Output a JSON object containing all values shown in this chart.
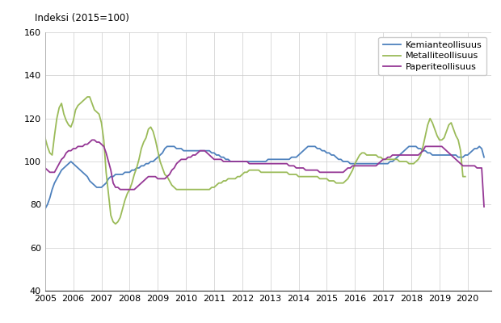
{
  "title": "Indeksi (2015=100)",
  "xlim_start": 2005.0,
  "xlim_end": 2020.83,
  "ylim": [
    40,
    160
  ],
  "yticks": [
    40,
    60,
    80,
    100,
    120,
    140,
    160
  ],
  "xtick_years": [
    2005,
    2006,
    2007,
    2008,
    2009,
    2010,
    2011,
    2012,
    2013,
    2014,
    2015,
    2016,
    2017,
    2018,
    2019,
    2020
  ],
  "line_colors": {
    "kemia": "#4e81bd",
    "metalli": "#9bbb59",
    "paperi": "#953795"
  },
  "legend_labels": [
    "Kemianteollisuus",
    "Metalliteollisuus",
    "Paperiteollisuus"
  ],
  "kemia": [
    78,
    80,
    83,
    87,
    90,
    92,
    94,
    96,
    97,
    98,
    99,
    100,
    99,
    98,
    97,
    96,
    95,
    94,
    93,
    91,
    90,
    89,
    88,
    88,
    88,
    89,
    90,
    92,
    93,
    93,
    94,
    94,
    94,
    94,
    95,
    95,
    95,
    96,
    96,
    97,
    97,
    98,
    98,
    99,
    99,
    100,
    100,
    101,
    102,
    103,
    104,
    106,
    107,
    107,
    107,
    107,
    106,
    106,
    106,
    105,
    105,
    105,
    105,
    105,
    105,
    105,
    105,
    105,
    105,
    105,
    105,
    104,
    104,
    103,
    103,
    102,
    102,
    101,
    101,
    100,
    100,
    100,
    100,
    100,
    100,
    100,
    100,
    100,
    100,
    100,
    100,
    100,
    100,
    100,
    100,
    101,
    101,
    101,
    101,
    101,
    101,
    101,
    101,
    101,
    101,
    102,
    102,
    102,
    103,
    104,
    105,
    106,
    107,
    107,
    107,
    107,
    106,
    106,
    105,
    105,
    104,
    104,
    103,
    103,
    102,
    101,
    101,
    100,
    100,
    100,
    99,
    99,
    99,
    99,
    99,
    99,
    99,
    99,
    99,
    99,
    99,
    99,
    99,
    99,
    99,
    99,
    99,
    100,
    100,
    101,
    102,
    103,
    104,
    105,
    106,
    107,
    107,
    107,
    107,
    106,
    106,
    105,
    105,
    104,
    104,
    103,
    103,
    103,
    103,
    103,
    103,
    103,
    103,
    103,
    103,
    103,
    102,
    102,
    102,
    103,
    103,
    104,
    105,
    106,
    106,
    107,
    106,
    102
  ],
  "metalli": [
    111,
    107,
    104,
    103,
    112,
    120,
    125,
    127,
    122,
    119,
    117,
    116,
    119,
    124,
    126,
    127,
    128,
    129,
    130,
    130,
    127,
    124,
    123,
    122,
    118,
    110,
    95,
    85,
    75,
    72,
    71,
    72,
    74,
    78,
    82,
    85,
    87,
    90,
    94,
    97,
    101,
    106,
    109,
    111,
    115,
    116,
    114,
    110,
    105,
    100,
    97,
    94,
    93,
    91,
    89,
    88,
    87,
    87,
    87,
    87,
    87,
    87,
    87,
    87,
    87,
    87,
    87,
    87,
    87,
    87,
    87,
    88,
    88,
    89,
    90,
    90,
    91,
    91,
    92,
    92,
    92,
    92,
    93,
    93,
    94,
    95,
    95,
    96,
    96,
    96,
    96,
    96,
    95,
    95,
    95,
    95,
    95,
    95,
    95,
    95,
    95,
    95,
    95,
    95,
    94,
    94,
    94,
    94,
    93,
    93,
    93,
    93,
    93,
    93,
    93,
    93,
    93,
    92,
    92,
    92,
    92,
    91,
    91,
    91,
    90,
    90,
    90,
    90,
    91,
    92,
    94,
    96,
    99,
    101,
    103,
    104,
    104,
    103,
    103,
    103,
    103,
    103,
    102,
    102,
    101,
    101,
    101,
    101,
    101,
    101,
    101,
    100,
    100,
    100,
    100,
    99,
    99,
    99,
    100,
    101,
    103,
    107,
    112,
    117,
    120,
    118,
    115,
    112,
    110,
    110,
    111,
    114,
    117,
    118,
    115,
    112,
    110,
    105,
    93,
    93
  ],
  "paperi": [
    97,
    96,
    95,
    95,
    95,
    97,
    99,
    101,
    102,
    104,
    105,
    105,
    106,
    106,
    107,
    107,
    107,
    108,
    108,
    109,
    110,
    110,
    109,
    109,
    108,
    107,
    104,
    100,
    96,
    90,
    88,
    88,
    87,
    87,
    87,
    87,
    87,
    87,
    87,
    88,
    89,
    90,
    91,
    92,
    93,
    93,
    93,
    93,
    92,
    92,
    92,
    92,
    93,
    94,
    96,
    97,
    99,
    100,
    101,
    101,
    101,
    102,
    102,
    103,
    103,
    104,
    105,
    105,
    105,
    104,
    103,
    102,
    101,
    101,
    101,
    101,
    100,
    100,
    100,
    100,
    100,
    100,
    100,
    100,
    100,
    100,
    100,
    99,
    99,
    99,
    99,
    99,
    99,
    99,
    99,
    99,
    99,
    99,
    99,
    99,
    99,
    99,
    99,
    99,
    98,
    98,
    98,
    97,
    97,
    97,
    97,
    96,
    96,
    96,
    96,
    96,
    96,
    95,
    95,
    95,
    95,
    95,
    95,
    95,
    95,
    95,
    95,
    95,
    96,
    97,
    97,
    98,
    98,
    98,
    98,
    98,
    98,
    98,
    98,
    98,
    98,
    98,
    99,
    100,
    101,
    101,
    102,
    102,
    103,
    103,
    103,
    103,
    103,
    103,
    103,
    103,
    103,
    103,
    103,
    103,
    104,
    105,
    107,
    107,
    107,
    107,
    107,
    107,
    107,
    107,
    106,
    105,
    104,
    103,
    102,
    101,
    100,
    99,
    98,
    98,
    98,
    98,
    98,
    98,
    97,
    97,
    97,
    79
  ]
}
